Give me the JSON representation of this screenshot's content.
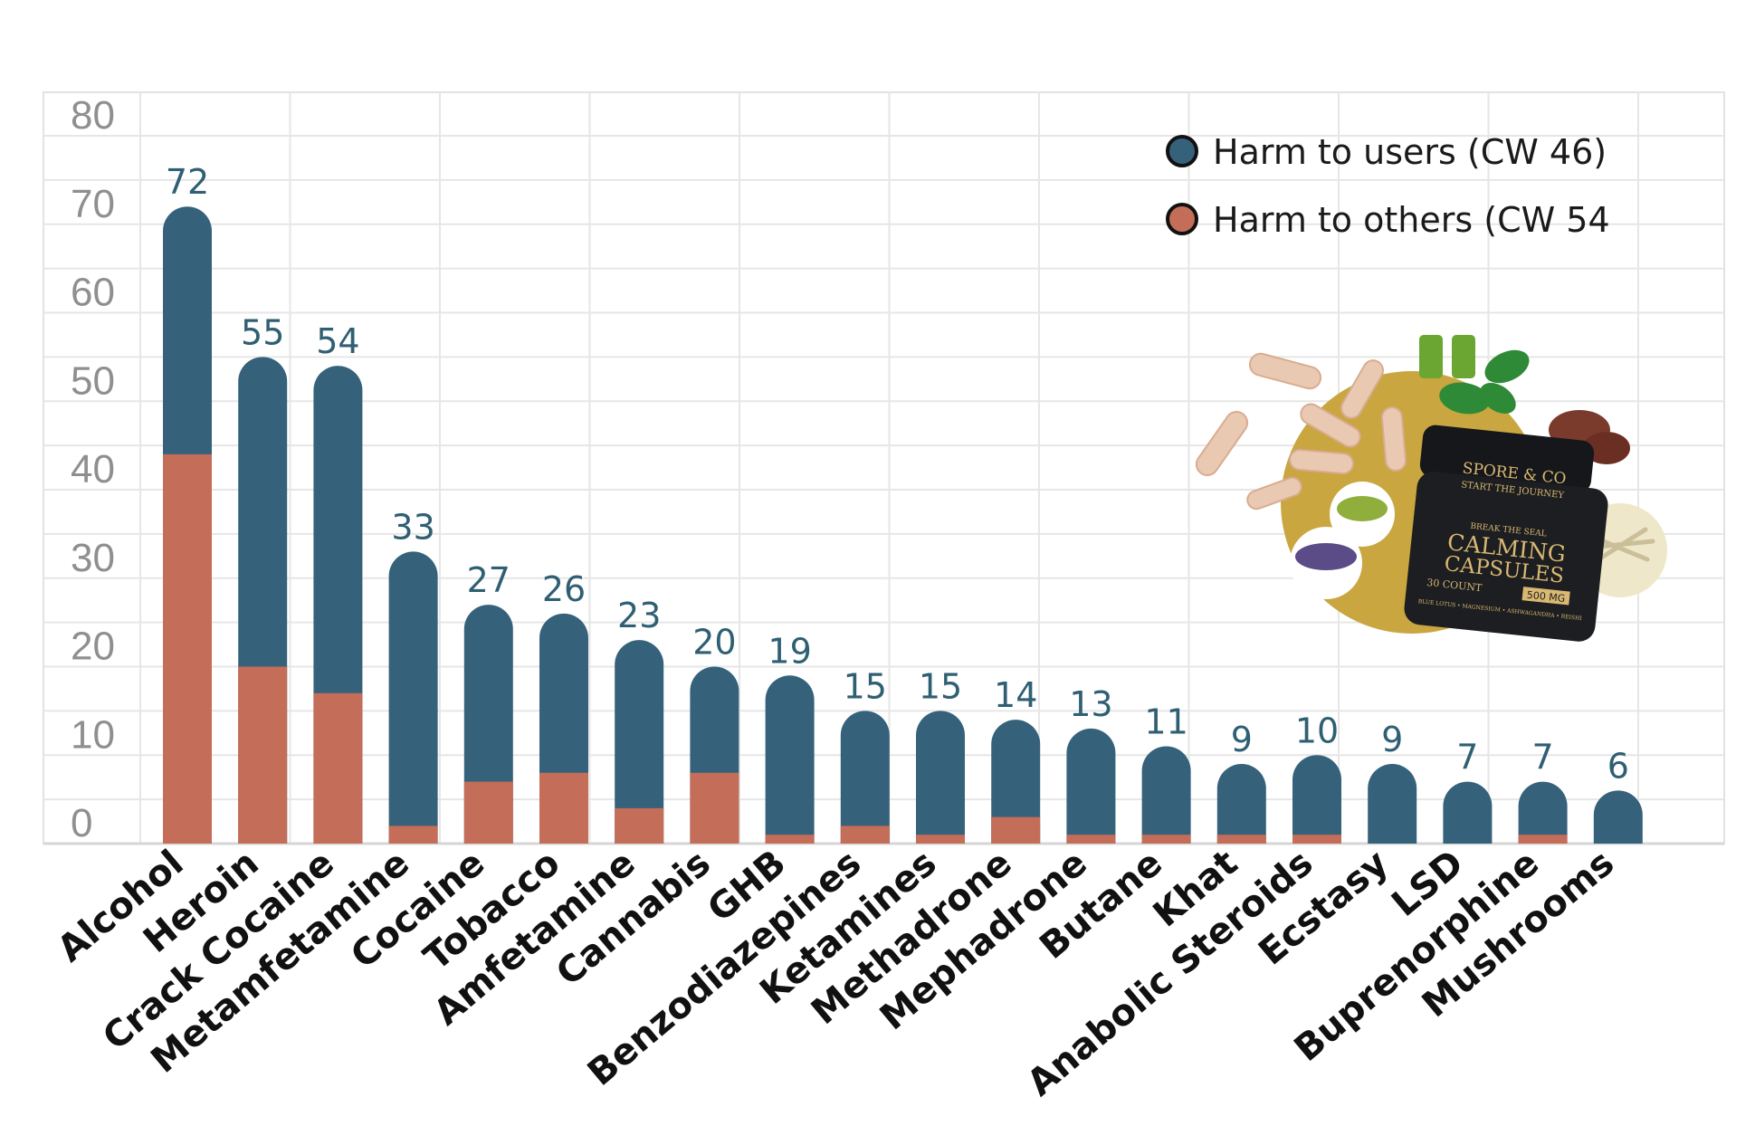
{
  "chart_data": {
    "type": "bar",
    "stacked": true,
    "categories": [
      "Alcohol",
      "Heroin",
      "Crack Cocaine",
      "Metamfetamine",
      "Cocaine",
      "Tobacco",
      "Amfetamine",
      "Cannabis",
      "GHB",
      "Benzodiazepines",
      "Ketamines",
      "Methadrone",
      "Mephadrone",
      "Butane",
      "Khat",
      "Anabolic Steroids",
      "Ecstasy",
      "LSD",
      "Buprenorphine",
      "Mushrooms"
    ],
    "totals": [
      72,
      55,
      54,
      33,
      27,
      26,
      23,
      20,
      19,
      15,
      15,
      14,
      13,
      11,
      9,
      10,
      9,
      7,
      7,
      6
    ],
    "total_labels": [
      "72",
      "55",
      "54",
      "33",
      "27",
      "26",
      "23",
      "20",
      "19",
      "15",
      "15",
      "14",
      "13",
      "11",
      "9",
      "10",
      "9",
      "7",
      "7",
      "6"
    ],
    "series": [
      {
        "name": "Harm to users (CW 46)",
        "color": "#35627a",
        "values": [
          28,
          35,
          37,
          31,
          20,
          18,
          19,
          12,
          18,
          13,
          14,
          11,
          12,
          10,
          8,
          9,
          9,
          7,
          6,
          6
        ]
      },
      {
        "name": "Harm to others (CW 54",
        "color": "#c46d58",
        "values": [
          44,
          20,
          17,
          2,
          7,
          8,
          4,
          8,
          1,
          2,
          1,
          3,
          1,
          1,
          1,
          1,
          0,
          0,
          1,
          0
        ]
      }
    ],
    "ylim": [
      0,
      85
    ],
    "yticks": [
      "0",
      "10",
      "20",
      "30",
      "40",
      "50",
      "60",
      "70",
      "80"
    ],
    "ytick_values": [
      0,
      10,
      20,
      30,
      40,
      50,
      60,
      70,
      80
    ],
    "grid": true,
    "legend_position": "top-right"
  },
  "product_image": {
    "brand": "SPORE & CO",
    "tagline": "START THE JOURNEY",
    "seal": "BREAK THE SEAL",
    "name_line1": "CALMING",
    "name_line2": "CAPSULES",
    "count": "30 COUNT",
    "dose": "500 MG",
    "ingredients": "BLUE LOTUS • MAGNESIUM • ASHWAGANDHA • REISHI",
    "colors": {
      "circle": "#c9a640",
      "jar": "#1c1e21",
      "gold": "#d9b871"
    }
  }
}
